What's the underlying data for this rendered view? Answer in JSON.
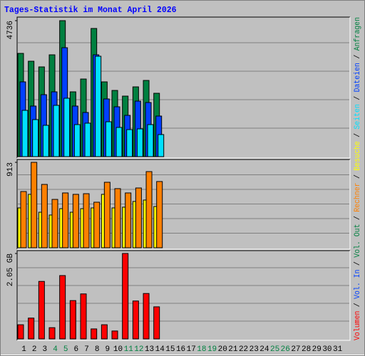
{
  "chart_data": {
    "type": "bar",
    "title": "Tages-Statistik im Monat April 2026",
    "categories": [
      "1",
      "2",
      "3",
      "4",
      "5",
      "6",
      "7",
      "8",
      "9",
      "10",
      "11",
      "12",
      "13",
      "14",
      "15",
      "16",
      "17",
      "18",
      "19",
      "20",
      "21",
      "22",
      "23",
      "24",
      "25",
      "26",
      "27",
      "28",
      "29",
      "30",
      "31"
    ],
    "highlight_categories": [
      "4",
      "5",
      "11",
      "12",
      "18",
      "19",
      "25",
      "26"
    ],
    "highlight_color": "#008040",
    "legend_separator": "/",
    "panels": [
      {
        "ylim": [
          0,
          4736
        ],
        "yticks": [
          4736
        ],
        "series": [
          {
            "name": "Anfragen",
            "color": "#008040",
            "values": [
              3596,
              3323,
              3125,
              3546,
              4736,
              2257,
              2703,
              4464,
              2604,
              2306,
              2108,
              2430,
              2654,
              2207,
              null,
              null,
              null,
              null,
              null,
              null,
              null,
              null,
              null,
              null,
              null,
              null,
              null,
              null,
              null,
              null,
              null
            ]
          },
          {
            "name": "Dateien",
            "color": "#0040ff",
            "values": [
              2604,
              1761,
              2158,
              2257,
              3794,
              1761,
              1538,
              3547,
              2009,
              1736,
              1438,
              1934,
              1885,
              1413,
              null,
              null,
              null,
              null,
              null,
              null,
              null,
              null,
              null,
              null,
              null,
              null,
              null,
              null,
              null,
              null,
              null
            ]
          },
          {
            "name": "Seiten",
            "color": "#00e0ff",
            "values": [
              1612,
              1290,
              1091,
              1786,
              2034,
              1116,
              1166,
              3497,
              1215,
              1017,
              942,
              967,
              1116,
              769,
              null,
              null,
              null,
              null,
              null,
              null,
              null,
              null,
              null,
              null,
              null,
              null,
              null,
              null,
              null,
              null,
              null
            ]
          }
        ]
      },
      {
        "ylim": [
          0,
          913
        ],
        "yticks": [
          913
        ],
        "series": [
          {
            "name": "Besuche",
            "color": "#ffff00",
            "values": [
              426,
              571,
              380,
              350,
              418,
              380,
              418,
              426,
              571,
              426,
              434,
              495,
              510,
              441,
              null,
              null,
              null,
              null,
              null,
              null,
              null,
              null,
              null,
              null,
              null,
              null,
              null,
              null,
              null,
              null,
              null
            ]
          },
          {
            "name": "Rechner",
            "color": "#ff8000",
            "values": [
              601,
              913,
              677,
              517,
              586,
              571,
              578,
              487,
              700,
              632,
              586,
              639,
              814,
              708,
              null,
              null,
              null,
              null,
              null,
              null,
              null,
              null,
              null,
              null,
              null,
              null,
              null,
              null,
              null,
              null,
              null
            ]
          }
        ]
      },
      {
        "ylim": [
          0,
          2.05
        ],
        "yticks": [
          {
            "value": 2.05,
            "label": "2.05 GB"
          }
        ],
        "series": [
          {
            "name": "Vol. Out",
            "color": "#008040",
            "values": [
              null,
              null,
              null,
              null,
              null,
              null,
              null,
              null,
              null,
              null,
              null,
              null,
              null,
              null,
              null,
              null,
              null,
              null,
              null,
              null,
              null,
              null,
              null,
              null,
              null,
              null,
              null,
              null,
              null,
              null,
              null
            ]
          },
          {
            "name": "Vol. In",
            "color": "#0040ff",
            "values": [
              null,
              null,
              null,
              null,
              null,
              null,
              null,
              null,
              null,
              null,
              null,
              null,
              null,
              null,
              null,
              null,
              null,
              null,
              null,
              null,
              null,
              null,
              null,
              null,
              null,
              null,
              null,
              null,
              null,
              null,
              null
            ]
          },
          {
            "name": "Volumen",
            "color": "#ff0000",
            "values": [
              0.34,
              0.5,
              1.38,
              0.27,
              1.52,
              0.92,
              1.08,
              0.24,
              0.34,
              0.19,
              2.05,
              0.91,
              1.09,
              0.77,
              null,
              null,
              null,
              null,
              null,
              null,
              null,
              null,
              null,
              null,
              null,
              null,
              null,
              null,
              null,
              null,
              null
            ]
          }
        ]
      }
    ]
  }
}
